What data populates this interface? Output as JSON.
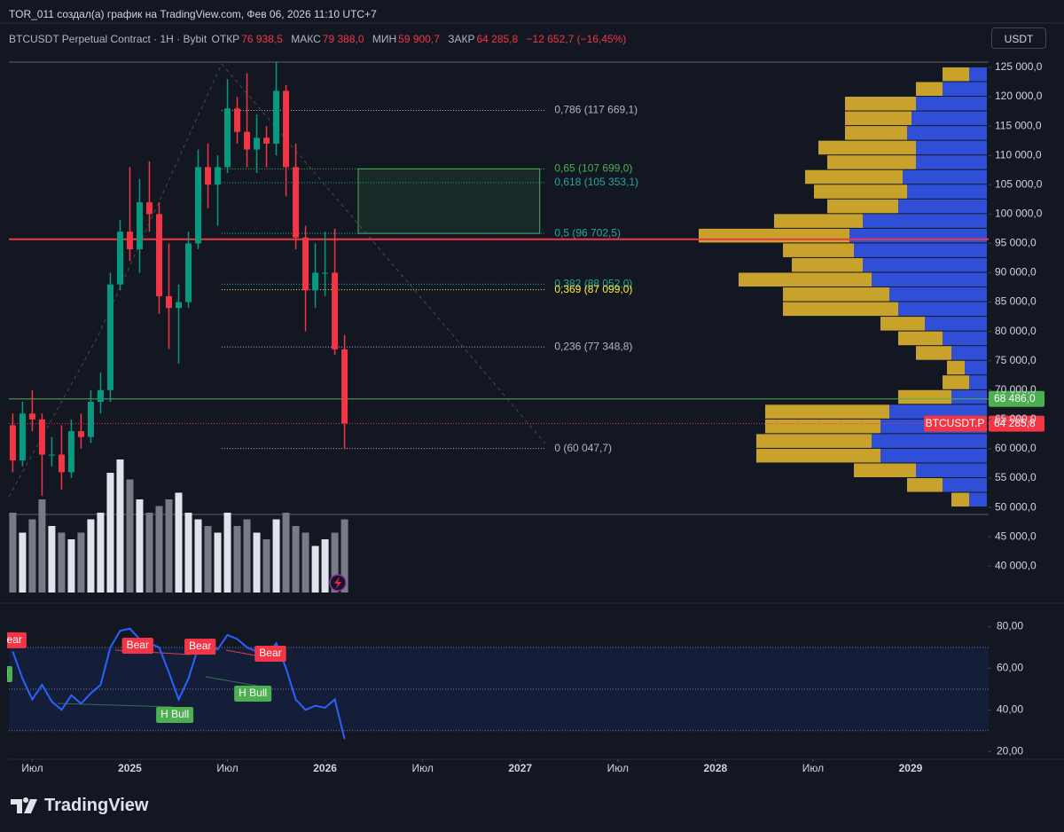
{
  "header": {
    "author_line": "TOR_011 создал(а) график на TradingView.com, Фев 06, 2026 11:10 UTC+7",
    "symbol": "BTCUSDT Perpetual Contract · 1H · Bybit",
    "ohlc": [
      {
        "label": "ОТКР",
        "value": "76 938,5"
      },
      {
        "label": "МАКС",
        "value": "79 388,0"
      },
      {
        "label": "МИН",
        "value": "59 900,7"
      },
      {
        "label": "ЗАКР",
        "value": "64 285,8"
      }
    ],
    "change": "−12 652,7 (−16,45%)",
    "currency": "USDT"
  },
  "chart_data": [
    {
      "type": "candlestick",
      "x": [
        2024.4,
        2024.45,
        2024.5,
        2024.55,
        2024.6,
        2024.65,
        2024.7,
        2024.75,
        2024.8,
        2024.85,
        2024.9,
        2024.95,
        2025.0,
        2025.05,
        2025.1,
        2025.15,
        2025.2,
        2025.25,
        2025.3,
        2025.35,
        2025.4,
        2025.45,
        2025.5,
        2025.55,
        2025.6,
        2025.65,
        2025.7,
        2025.75,
        2025.8,
        2025.85,
        2025.9,
        2025.95,
        2026.0,
        2026.05,
        2026.1
      ],
      "open": [
        64000,
        58000,
        66000,
        65000,
        59000,
        59000,
        56000,
        63000,
        62000,
        68000,
        70000,
        88000,
        97000,
        94000,
        102000,
        100000,
        86000,
        84000,
        85000,
        95000,
        108000,
        105000,
        108000,
        118000,
        114000,
        111000,
        113000,
        112000,
        121000,
        108000,
        96000,
        87000,
        90000,
        90000,
        76938.5
      ],
      "high": [
        66000,
        68000,
        70000,
        66000,
        62000,
        64000,
        65000,
        66000,
        70000,
        73000,
        90000,
        99000,
        108000,
        106000,
        109000,
        102000,
        95000,
        88000,
        97000,
        111000,
        112000,
        110000,
        123000,
        120000,
        124000,
        117000,
        115000,
        126000,
        122000,
        112000,
        98000,
        95000,
        97000,
        97500,
        79388
      ],
      "low": [
        56000,
        57000,
        63000,
        52000,
        57000,
        53000,
        55000,
        60000,
        61000,
        66000,
        68000,
        87000,
        92000,
        90000,
        97000,
        83000,
        77000,
        74500,
        84000,
        94000,
        101000,
        98000,
        107000,
        112000,
        108000,
        107000,
        108000,
        110000,
        103000,
        94000,
        80000,
        84000,
        86000,
        76000,
        59900.7
      ],
      "close": [
        58000,
        66000,
        65000,
        59000,
        59000,
        56000,
        63000,
        62000,
        68000,
        70000,
        88000,
        97000,
        94000,
        102000,
        100000,
        86000,
        84000,
        85000,
        95000,
        108000,
        105000,
        108000,
        118000,
        114000,
        111000,
        113000,
        112000,
        121000,
        108000,
        96000,
        87000,
        90000,
        90000,
        76938.5,
        64285.8
      ],
      "volume": [
        60,
        45,
        55,
        70,
        50,
        45,
        40,
        45,
        55,
        60,
        90,
        100,
        85,
        70,
        60,
        65,
        70,
        75,
        60,
        55,
        50,
        45,
        60,
        50,
        55,
        45,
        40,
        55,
        60,
        50,
        45,
        35,
        40,
        45,
        55
      ],
      "up_color": "#089981",
      "down_color": "#f23645",
      "volume_up_color": "#e0e3eb",
      "volume_down_color": "#787b86",
      "xlim": [
        2024.38,
        2029.4
      ],
      "xticks": [
        {
          "value": 2024.5,
          "label": "Июл"
        },
        2025,
        {
          "value": 2025.5,
          "label": "Июл"
        },
        2026,
        {
          "value": 2026.5,
          "label": "Июл"
        },
        2027,
        {
          "value": 2027.5,
          "label": "Июл"
        },
        2028,
        {
          "value": 2028.5,
          "label": "Июл"
        },
        2029
      ],
      "ylim": [
        35500,
        125900
      ],
      "yticks": [
        {
          "value": 125000,
          "label": "125 000,0"
        },
        {
          "value": 120000,
          "label": "120 000,0"
        },
        {
          "value": 115000,
          "label": "115 000,0"
        },
        {
          "value": 110000,
          "label": "110 000,0"
        },
        {
          "value": 105000,
          "label": "105 000,0"
        },
        {
          "value": 100000,
          "label": "100 000,0"
        },
        {
          "value": 95000,
          "label": "95 000,0"
        },
        {
          "value": 90000,
          "label": "90 000,0"
        },
        {
          "value": 85000,
          "label": "85 000,0"
        },
        {
          "value": 80000,
          "label": "80 000,0"
        },
        {
          "value": 75000,
          "label": "75 000,0"
        },
        {
          "value": 70000,
          "label": "70 000,0"
        },
        {
          "value": 65000,
          "label": "65 000,0"
        },
        {
          "value": 60000,
          "label": "60 000,0"
        },
        {
          "value": 55000,
          "label": "55 000,0"
        },
        {
          "value": 50000,
          "label": "50 000,0"
        },
        {
          "value": 45000,
          "label": "45 000,0"
        },
        {
          "value": 40000,
          "label": "40 000,0"
        }
      ],
      "grid": false,
      "hlines": [
        {
          "value": 95700,
          "color": "#f23645"
        },
        {
          "value": 68486,
          "label": "68 486,0",
          "color": "#4caf50"
        }
      ],
      "last_price": {
        "name": "BTCUSDT.P",
        "label": "64 285,8",
        "color": "#f23645"
      },
      "zone": {
        "x": [
          2026.17,
          2027.1
        ],
        "y": [
          96702.5,
          107699
        ],
        "color": "#4caf50"
      },
      "fib": {
        "x": [
          2025.47,
          2027.13
        ],
        "levels": [
          {
            "label": "0,786 (117 669,1)",
            "value": 117669.1,
            "color": "#b2b5be"
          },
          {
            "label": "0,65 (107 699,0)",
            "value": 107699,
            "color": "#4caf50"
          },
          {
            "label": "0,618 (105 353,1)",
            "value": 105353.1,
            "color": "#26a69a"
          },
          {
            "label": "0,5 (96 702,5)",
            "value": 96702.5,
            "color": "#26a69a"
          },
          {
            "label": "0,382 (88 052,0)",
            "value": 88052,
            "color": "#26a69a"
          },
          {
            "label": "0,369 (87 099,0)",
            "value": 87099,
            "color": "#ffeb3b"
          },
          {
            "label": "0,236 (77 348,8)",
            "value": 77348.8,
            "color": "#b2b5be"
          },
          {
            "label": "0 (60 047,7)",
            "value": 60047.7,
            "color": "#b2b5be"
          }
        ]
      },
      "volume_profile": {
        "bins": [
          50000,
          52500,
          55000,
          57500,
          60000,
          62500,
          65000,
          67500,
          70000,
          72500,
          75000,
          77500,
          80000,
          82500,
          85000,
          87500,
          90000,
          92500,
          95000,
          97500,
          100000,
          102500,
          105000,
          107500,
          110000,
          112500,
          115000,
          117500,
          120000,
          122500,
          125000
        ],
        "series": [
          {
            "color": "#2f4fd6",
            "values": [
              20,
              50,
              80,
              120,
              130,
              120,
              110,
              40,
              20,
              25,
              40,
              50,
              70,
              100,
              110,
              130,
              140,
              150,
              155,
              140,
              100,
              90,
              95,
              80,
              80,
              90,
              85,
              80,
              50,
              20
            ]
          },
          {
            "color": "#c9a22c",
            "values": [
              20,
              40,
              70,
              140,
              130,
              130,
              140,
              60,
              30,
              20,
              40,
              50,
              50,
              130,
              120,
              150,
              80,
              80,
              170,
              100,
              80,
              105,
              110,
              100,
              110,
              70,
              75,
              80,
              30,
              30
            ]
          }
        ]
      }
    },
    {
      "type": "line",
      "x": [
        2024.4,
        2024.45,
        2024.5,
        2024.55,
        2024.6,
        2024.65,
        2024.7,
        2024.75,
        2024.8,
        2024.85,
        2024.9,
        2024.95,
        2025.0,
        2025.05,
        2025.1,
        2025.15,
        2025.2,
        2025.25,
        2025.3,
        2025.35,
        2025.4,
        2025.45,
        2025.5,
        2025.55,
        2025.6,
        2025.65,
        2025.7,
        2025.75,
        2025.8,
        2025.85,
        2025.9,
        2025.95,
        2026.0,
        2026.05,
        2026.1
      ],
      "values": [
        68,
        55,
        45,
        52,
        44,
        40,
        47,
        43,
        48,
        52,
        70,
        78,
        79,
        74,
        72,
        70,
        58,
        45,
        55,
        70,
        72,
        69,
        76,
        74,
        70,
        68,
        66,
        72,
        60,
        45,
        40,
        42,
        41,
        45,
        26
      ],
      "color": "#2962ff",
      "xlim": [
        2024.38,
        2029.4
      ],
      "ylim": [
        15,
        87
      ],
      "yticks": [
        {
          "value": 80,
          "label": "80,00"
        },
        {
          "value": 60,
          "label": "60,00"
        },
        {
          "value": 40,
          "label": "40,00"
        },
        {
          "value": 20,
          "label": "20,00"
        }
      ],
      "band": [
        30,
        70
      ],
      "midline": 50,
      "signals": [
        {
          "text": "Bear",
          "x": 2024.39,
          "y": 73.4,
          "color": "#f23645"
        },
        {
          "text": "Bull",
          "x": 2024.33,
          "y": 57.2,
          "color": "#4caf50"
        },
        {
          "text": "Bear",
          "x": 2025.04,
          "y": 70.8,
          "color": "#f23645"
        },
        {
          "text": "Bear",
          "x": 2025.36,
          "y": 70.4,
          "color": "#f23645"
        },
        {
          "text": "Bear",
          "x": 2025.72,
          "y": 67.0,
          "color": "#f23645"
        },
        {
          "text": "H Bull",
          "x": 2025.23,
          "y": 37.6,
          "color": "#4caf50"
        },
        {
          "text": "H Bull",
          "x": 2025.63,
          "y": 47.8,
          "color": "#4caf50"
        }
      ]
    }
  ],
  "footer": {
    "brand": "TradingView"
  }
}
